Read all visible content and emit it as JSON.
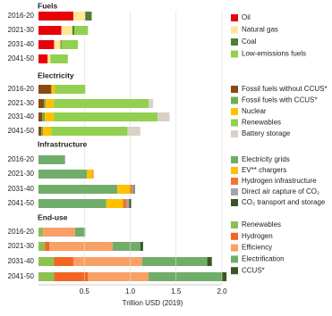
{
  "chart_data": [
    {
      "type": "stacked-bar",
      "title": "Fuels",
      "orientation": "horizontal",
      "categories": [
        "2016-20",
        "2021-30",
        "2031-40",
        "2041-50"
      ],
      "xlim": [
        0,
        2
      ],
      "series": [
        {
          "name": "Oil",
          "color": "#e8000b",
          "values": [
            0.38,
            0.25,
            0.17,
            0.1
          ]
        },
        {
          "name": "Natural gas",
          "color": "#ffe699",
          "values": [
            0.13,
            0.12,
            0.07,
            0.03
          ]
        },
        {
          "name": "Coal",
          "color": "#4f7f35",
          "values": [
            0.07,
            0.02,
            0.01,
            0
          ]
        },
        {
          "name": "Low-emissions fuels",
          "color": "#92d050",
          "values": [
            0,
            0.15,
            0.18,
            0.19
          ]
        }
      ]
    },
    {
      "type": "stacked-bar",
      "title": "Electricity",
      "orientation": "horizontal",
      "categories": [
        "2016-20",
        "2021-30",
        "2031-40",
        "2041-50"
      ],
      "xlim": [
        0,
        2
      ],
      "series": [
        {
          "name": "Fossil fuels without CCUS*",
          "color": "#8a4a12",
          "values": [
            0.14,
            0.06,
            0.04,
            0.03
          ]
        },
        {
          "name": "Fossil fuels with CCUS*",
          "color": "#6fae4f",
          "values": [
            0,
            0.02,
            0.03,
            0.02
          ]
        },
        {
          "name": "Nuclear",
          "color": "#ffc000",
          "values": [
            0.04,
            0.09,
            0.1,
            0.09
          ]
        },
        {
          "name": "Renewables",
          "color": "#92d050",
          "values": [
            0.33,
            1.03,
            1.13,
            0.83
          ]
        },
        {
          "name": "Battery storage",
          "color": "#d9d2c4",
          "values": [
            0,
            0.05,
            0.13,
            0.14
          ]
        }
      ]
    },
    {
      "type": "stacked-bar",
      "title": "Infrastructure",
      "orientation": "horizontal",
      "categories": [
        "2016-20",
        "2021-30",
        "2031-40",
        "2041-50"
      ],
      "xlim": [
        0,
        2
      ],
      "series": [
        {
          "name": "Electricity grids",
          "color": "#70ad6a",
          "values": [
            0.29,
            0.53,
            0.86,
            0.74
          ]
        },
        {
          "name": "EV** chargers",
          "color": "#ffc000",
          "values": [
            0,
            0.06,
            0.14,
            0.18
          ]
        },
        {
          "name": "Hydrogen infrastructure",
          "color": "#f4742b",
          "values": [
            0,
            0.01,
            0.02,
            0.04
          ]
        },
        {
          "name": "Direct air capture of CO₂",
          "color": "#a5a5a5",
          "values": [
            0,
            0,
            0.02,
            0.03
          ]
        },
        {
          "name": "CO₂ transport and storage",
          "color": "#375623",
          "values": [
            0,
            0,
            0.01,
            0.02
          ]
        }
      ]
    },
    {
      "type": "stacked-bar",
      "title": "End-use",
      "orientation": "horizontal",
      "categories": [
        "2016-20",
        "2021-30",
        "2031-40",
        "2041-50"
      ],
      "xlim": [
        0,
        2
      ],
      "xticks": [
        {
          "value": 0.5,
          "label": "0.5"
        },
        {
          "value": 1,
          "label": "1.0"
        },
        {
          "value": 1.5,
          "label": "1.5"
        },
        {
          "value": 2,
          "label": "2.0"
        }
      ],
      "xlabel": "Trillion USD (2019)",
      "grid": true,
      "series": [
        {
          "name": "Renewables",
          "color": "#8cc152",
          "values": [
            0.05,
            0.07,
            0.17,
            0.17
          ]
        },
        {
          "name": "Hydrogen",
          "color": "#f26522",
          "values": [
            0,
            0.05,
            0.21,
            0.37
          ]
        },
        {
          "name": "Efficiency",
          "color": "#f9a066",
          "values": [
            0.35,
            0.69,
            0.75,
            0.66
          ]
        },
        {
          "name": "Electrification",
          "color": "#70ad6a",
          "values": [
            0.11,
            0.3,
            0.71,
            0.8
          ]
        },
        {
          "name": "CCUS*",
          "color": "#375623",
          "values": [
            0,
            0.03,
            0.05,
            0.05
          ]
        }
      ]
    }
  ]
}
